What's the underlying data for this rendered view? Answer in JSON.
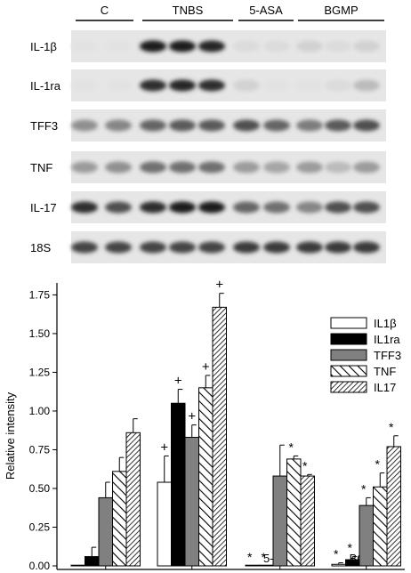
{
  "blot": {
    "groups": [
      "C",
      "TNBS",
      "5-ASA",
      "BGMP"
    ],
    "rows": [
      {
        "label": "IL-1β",
        "intensity": [
          0.02,
          0.02,
          0.95,
          0.95,
          0.9,
          0.05,
          0.05,
          0.1,
          0.05,
          0.1
        ]
      },
      {
        "label": "IL-1ra",
        "intensity": [
          0.02,
          0.02,
          0.85,
          0.9,
          0.85,
          0.1,
          0.02,
          0.02,
          0.05,
          0.2
        ]
      },
      {
        "label": "TFF3",
        "intensity": [
          0.4,
          0.45,
          0.6,
          0.65,
          0.65,
          0.7,
          0.6,
          0.5,
          0.65,
          0.7
        ]
      },
      {
        "label": "TNF",
        "intensity": [
          0.35,
          0.4,
          0.55,
          0.55,
          0.55,
          0.35,
          0.3,
          0.35,
          0.2,
          0.35
        ]
      },
      {
        "label": "IL-17",
        "intensity": [
          0.85,
          0.7,
          0.85,
          0.95,
          0.95,
          0.6,
          0.55,
          0.45,
          0.7,
          0.7
        ]
      },
      {
        "label": "18S",
        "intensity": [
          0.75,
          0.75,
          0.75,
          0.75,
          0.75,
          0.8,
          0.8,
          0.8,
          0.8,
          0.8
        ]
      }
    ]
  },
  "chart_data": {
    "type": "bar",
    "categories": [
      "C",
      "TNBS",
      "5-ASA",
      "BGMP"
    ],
    "ylabel": "Relative intensity",
    "xlabel": "",
    "ylim": [
      0,
      1.85
    ],
    "yticks": [
      0.0,
      0.25,
      0.5,
      0.75,
      1.0,
      1.25,
      1.5,
      1.75
    ],
    "ytick_labels": [
      "0.00",
      "0.25",
      "0.50",
      "0.75",
      "1.00",
      "1.25",
      "1.50",
      "1.75"
    ],
    "legend_position": "right",
    "series": [
      {
        "name": "IL1β",
        "pattern": "white",
        "values": [
          0.0,
          0.54,
          0.0,
          0.01
        ],
        "errors": [
          0.0,
          0.17,
          0.0,
          0.01
        ],
        "marks": [
          "",
          "+",
          "*",
          "*"
        ]
      },
      {
        "name": "IL1ra",
        "pattern": "black",
        "values": [
          0.06,
          1.05,
          0.0,
          0.04
        ],
        "errors": [
          0.06,
          0.09,
          0.0,
          0.02
        ],
        "marks": [
          "",
          "+",
          "*",
          "*"
        ]
      },
      {
        "name": "TFF3",
        "pattern": "gray",
        "values": [
          0.44,
          0.83,
          0.58,
          0.39
        ],
        "errors": [
          0.1,
          0.08,
          0.2,
          0.05
        ],
        "marks": [
          "",
          "+",
          "",
          "*"
        ]
      },
      {
        "name": "TNF",
        "pattern": "wide-hatch",
        "values": [
          0.61,
          1.15,
          0.69,
          0.51
        ],
        "errors": [
          0.09,
          0.08,
          0.02,
          0.09
        ],
        "marks": [
          "",
          "+",
          "*",
          "*"
        ]
      },
      {
        "name": "IL17",
        "pattern": "dense-hatch",
        "values": [
          0.86,
          1.67,
          0.58,
          0.77
        ],
        "errors": [
          0.09,
          0.09,
          0.01,
          0.07
        ],
        "marks": [
          "",
          "+",
          "*",
          "*"
        ]
      }
    ]
  },
  "colors": {
    "axis": "#000000",
    "gray_bar": "#808080",
    "blot_background": "#e6e6e6"
  }
}
